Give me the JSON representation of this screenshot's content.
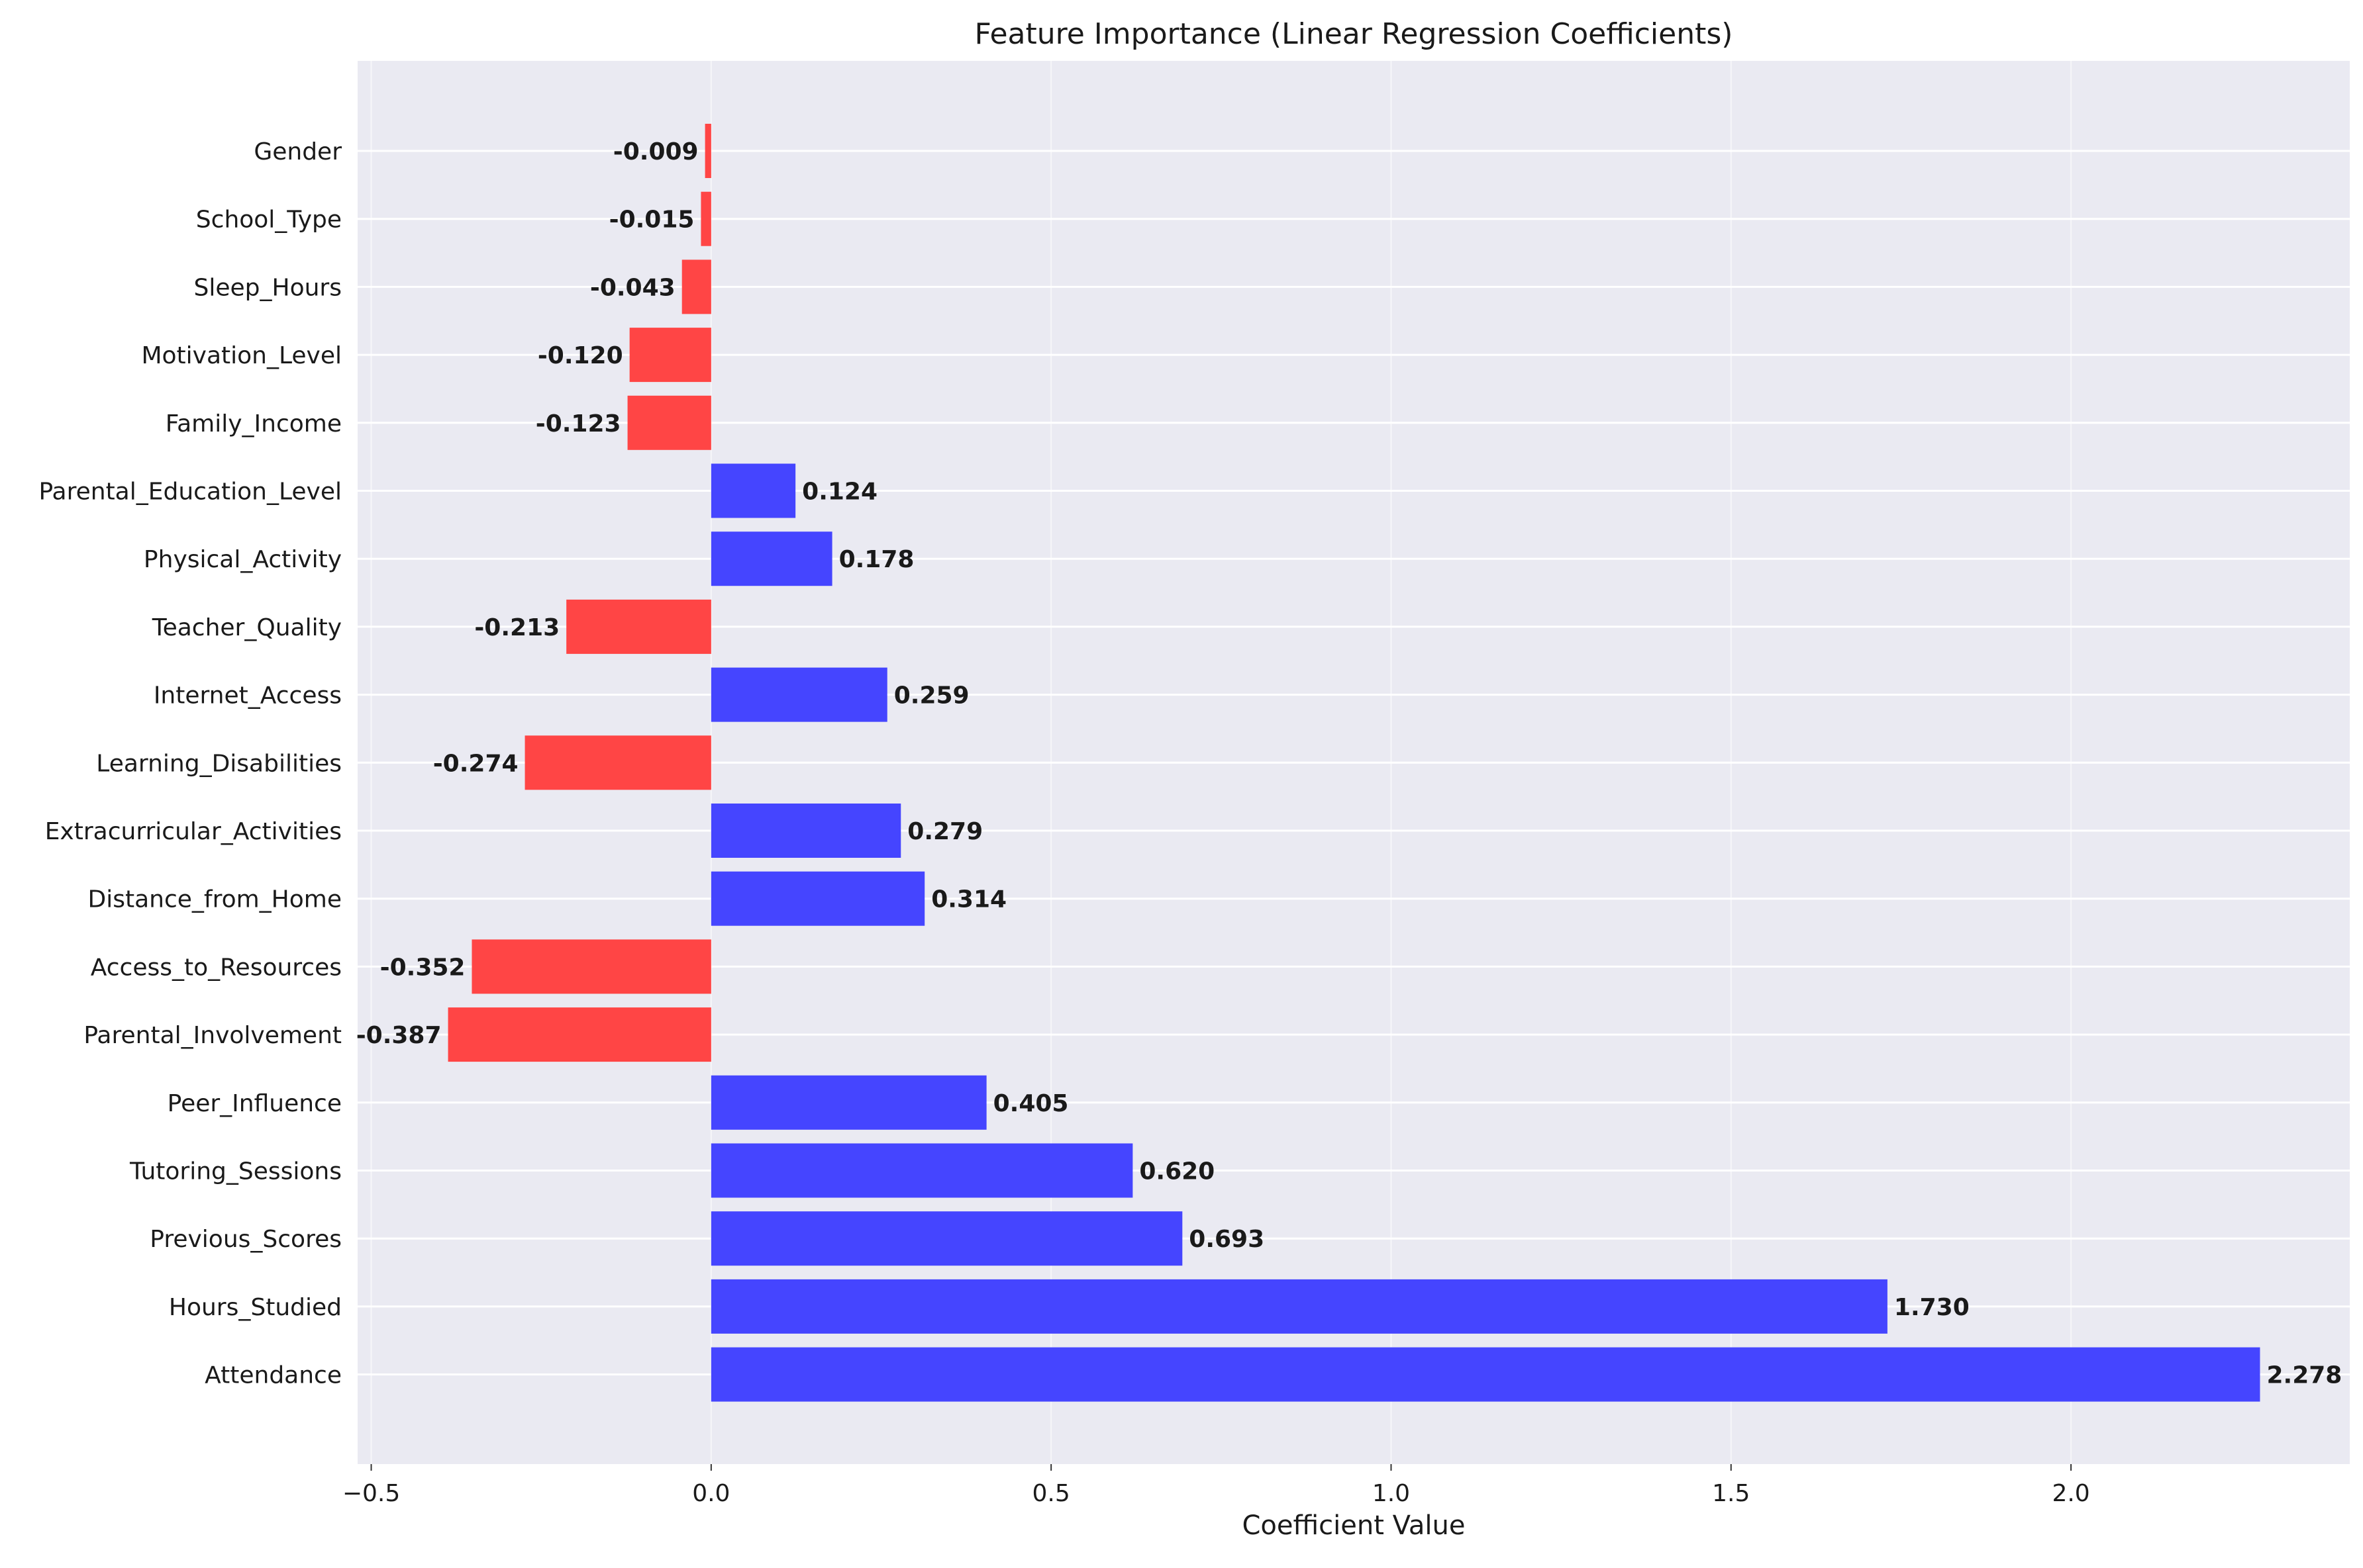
{
  "chart_data": {
    "type": "bar",
    "orientation": "horizontal",
    "title": "Feature Importance (Linear Regression Coefficients)",
    "xlabel": "Coefficient Value",
    "ylabel": "",
    "xlim": [
      -0.52,
      2.41
    ],
    "xticks": [
      -0.5,
      0.0,
      0.5,
      1.0,
      1.5,
      2.0
    ],
    "xtick_labels": [
      "−0.5",
      "0.0",
      "0.5",
      "1.0",
      "1.5",
      "2.0"
    ],
    "grid": true,
    "legend": "none",
    "categories": [
      "Gender",
      "School_Type",
      "Sleep_Hours",
      "Motivation_Level",
      "Family_Income",
      "Parental_Education_Level",
      "Physical_Activity",
      "Teacher_Quality",
      "Internet_Access",
      "Learning_Disabilities",
      "Extracurricular_Activities",
      "Distance_from_Home",
      "Access_to_Resources",
      "Parental_Involvement",
      "Peer_Influence",
      "Tutoring_Sessions",
      "Previous_Scores",
      "Hours_Studied",
      "Attendance"
    ],
    "values": [
      -0.009,
      -0.015,
      -0.043,
      -0.12,
      -0.123,
      0.124,
      0.178,
      -0.213,
      0.259,
      -0.274,
      0.279,
      0.314,
      -0.352,
      -0.387,
      0.405,
      0.62,
      0.693,
      1.73,
      2.278
    ],
    "value_labels": [
      "-0.009",
      "-0.015",
      "-0.043",
      "-0.120",
      "-0.123",
      "0.124",
      "0.178",
      "-0.213",
      "0.259",
      "-0.274",
      "0.279",
      "0.314",
      "-0.352",
      "-0.387",
      "0.405",
      "0.620",
      "0.693",
      "1.730",
      "2.278"
    ],
    "colors": {
      "positive": "#4545ff",
      "negative": "#ff4545",
      "plot_background": "#eaeaf2",
      "grid": "#ffffff"
    }
  }
}
